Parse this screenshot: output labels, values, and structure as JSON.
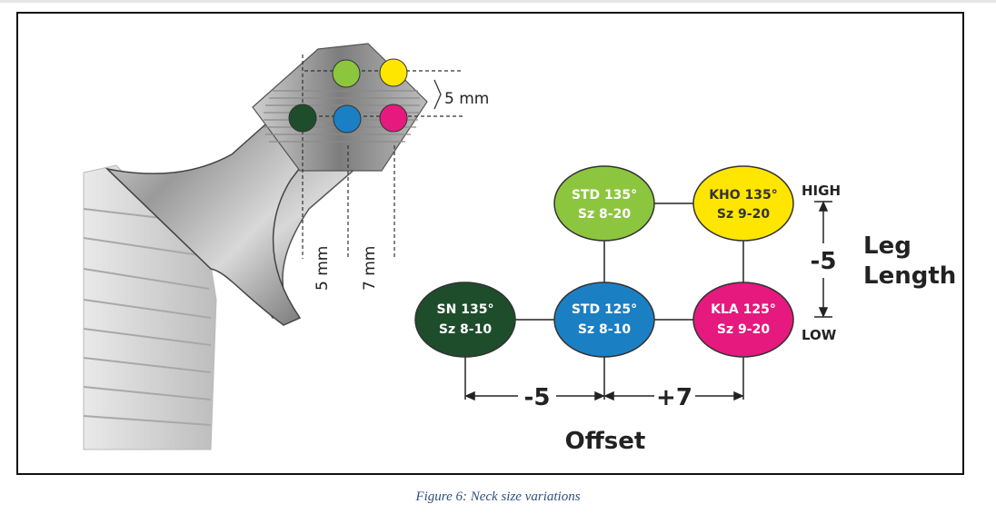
{
  "figure": {
    "caption": "Figure 6: Neck size variations"
  },
  "implant": {
    "dim_top": "5 mm",
    "dim_v1": "5 mm",
    "dim_v2": "7 mm",
    "dots": [
      {
        "name": "dot-light-green",
        "color": "#8cc63f"
      },
      {
        "name": "dot-yellow",
        "color": "#ffe600"
      },
      {
        "name": "dot-dark-green",
        "color": "#1e4d2b"
      },
      {
        "name": "dot-blue",
        "color": "#1b7fc4"
      },
      {
        "name": "dot-magenta",
        "color": "#e5197e"
      }
    ]
  },
  "nodes": {
    "std135": {
      "line1": "STD 135°",
      "line2": "Sz 8-20",
      "color": "#8cc63f",
      "text_color": "#ffffff"
    },
    "kho135": {
      "line1": "KHO 135°",
      "line2": "Sz 9-20",
      "color": "#ffe600",
      "text_color": "#333333"
    },
    "sn135": {
      "line1": "SN 135°",
      "line2": "Sz 8-10",
      "color": "#1e4d2b",
      "text_color": "#ffffff"
    },
    "std125": {
      "line1": "STD 125°",
      "line2": "Sz 8-10",
      "color": "#1b7fc4",
      "text_color": "#ffffff"
    },
    "kla125": {
      "line1": "KLA 125°",
      "line2": "Sz 9-20",
      "color": "#e5197e",
      "text_color": "#ffffff"
    }
  },
  "axes": {
    "high": "HIGH",
    "low": "LOW",
    "leg_delta": "-5",
    "leg_line1": "Leg",
    "leg_line2": "Length",
    "offset_delta_left": "-5",
    "offset_delta_right": "+7",
    "offset_label": "Offset"
  }
}
